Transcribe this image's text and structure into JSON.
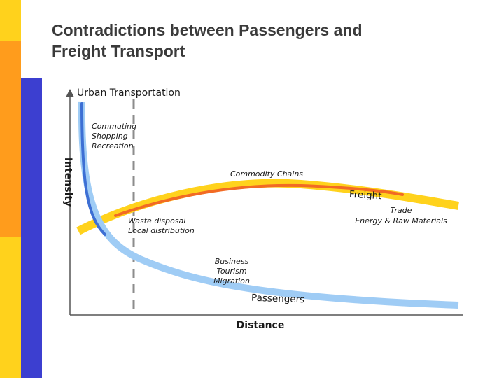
{
  "slide": {
    "title_line1": "Contradictions between Passengers and",
    "title_line2": "Freight Transport"
  },
  "diagram": {
    "y_axis_label": "Intensity",
    "x_axis_label": "Distance",
    "urban_label": "Urban Transportation",
    "urban_activities": [
      "Commuting",
      "Shopping",
      "Recreation"
    ],
    "commodity_label": "Commodity Chains",
    "freight_curve_label": "Freight",
    "trade_lines": [
      "Trade",
      "Energy & Raw Materials"
    ],
    "waste_lines": [
      "Waste disposal",
      "Local distribution"
    ],
    "business_lines": [
      "Business",
      "Tourism",
      "Migration"
    ],
    "passengers_curve_label": "Passengers",
    "colors": {
      "passenger_curve_outer": "#9fccf5",
      "passenger_curve_inner": "#3d6fd4",
      "freight_curve_outer": "#ffd21c",
      "freight_curve_inner": "#f26a24",
      "axis": "#555555",
      "divider": "#8c8c8c",
      "title": "#3a3a3a",
      "sidebar_yellow": "#ffd21c",
      "sidebar_orange": "#ff9c1c",
      "sidebar_blue": "#3c3fd0"
    }
  }
}
